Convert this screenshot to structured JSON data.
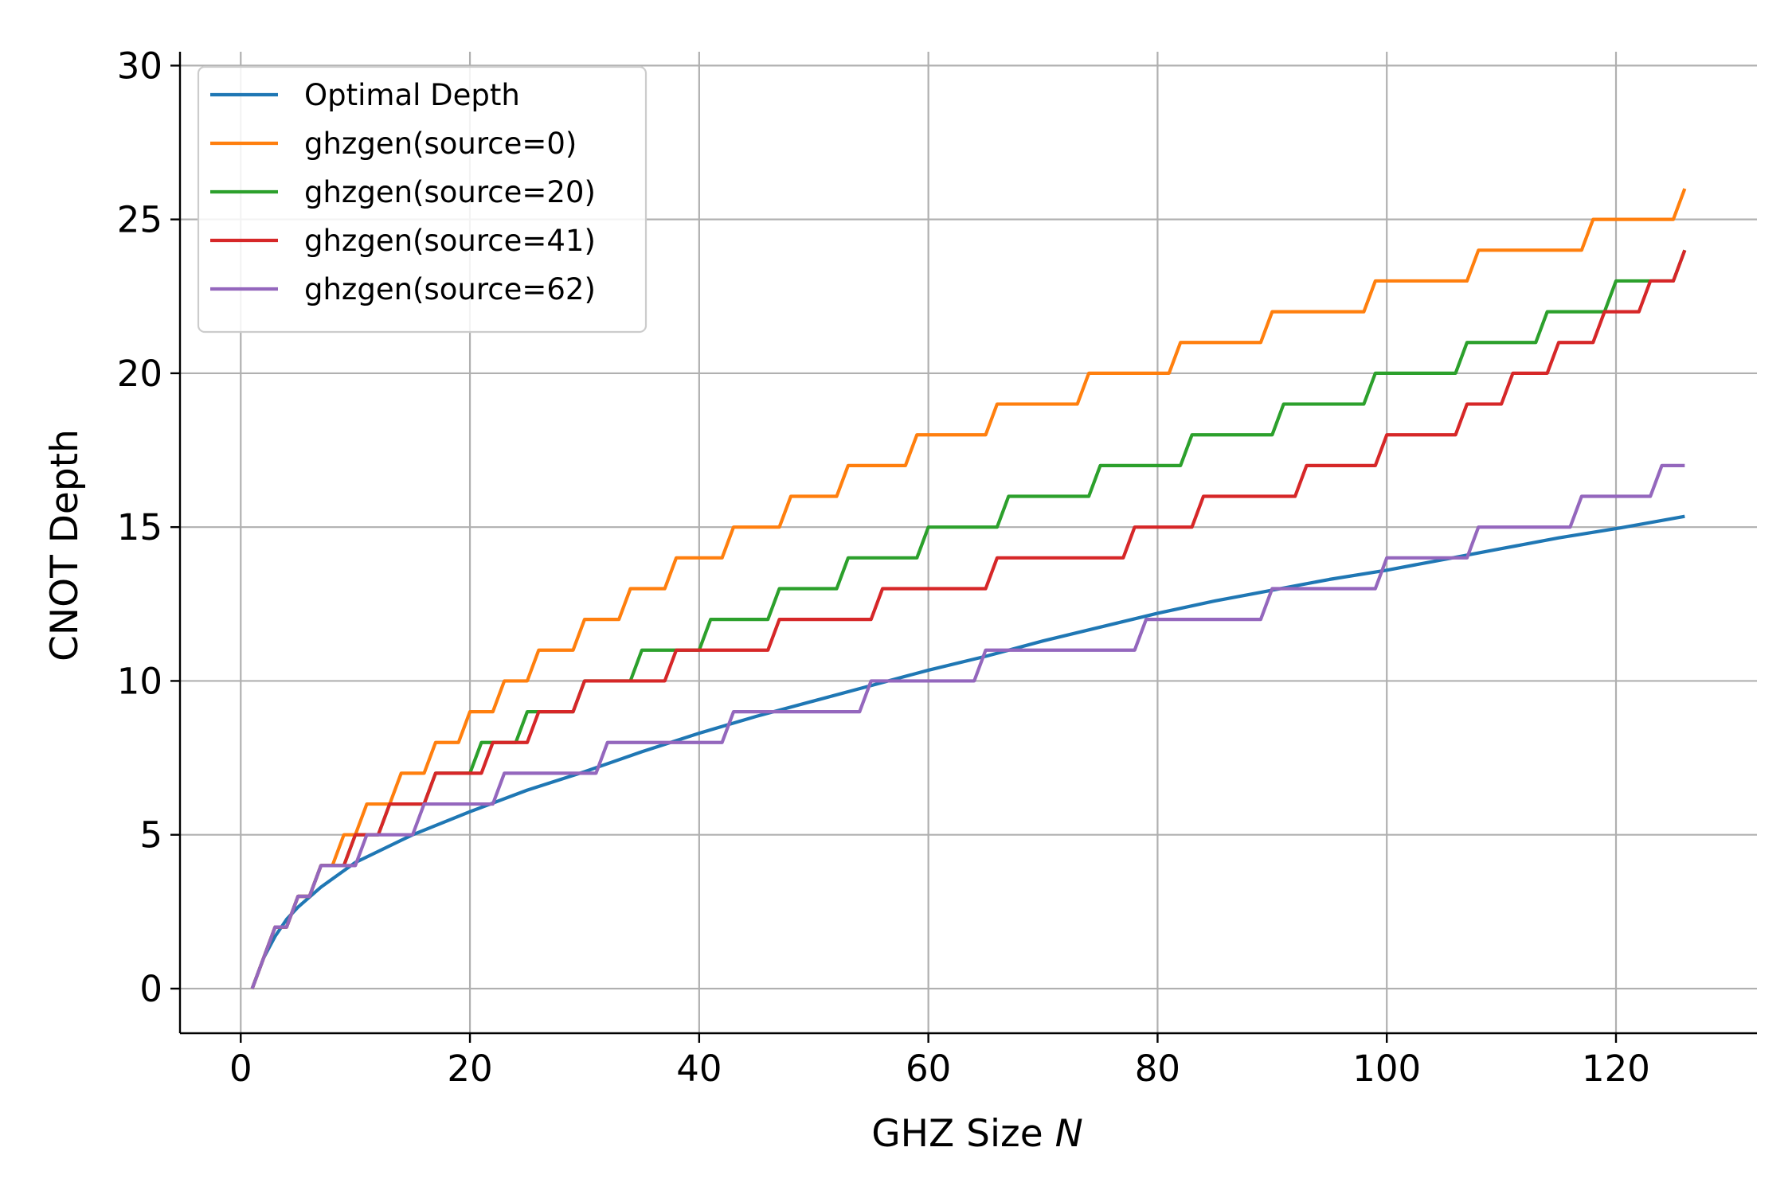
{
  "chart_data": {
    "type": "line",
    "xlabel": "GHZ Size",
    "xlabel_var": "N",
    "ylabel": "CNOT Depth",
    "xlim": [
      -5.3,
      132.3
    ],
    "ylim": [
      -1.45,
      30.45
    ],
    "xticks": [
      0,
      20,
      40,
      60,
      80,
      100,
      120
    ],
    "yticks": [
      0,
      5,
      10,
      15,
      20,
      25,
      30
    ],
    "grid": true,
    "legend_position": "top-left",
    "x_range": [
      1,
      126
    ],
    "series": [
      {
        "name": "Optimal Depth",
        "color": "#1f77b4",
        "kind": "curve",
        "formula_description": "smooth concave curve",
        "values": [
          [
            1,
            0
          ],
          [
            2,
            1
          ],
          [
            3,
            1.7
          ],
          [
            4,
            2.25
          ],
          [
            5,
            2.65
          ],
          [
            7,
            3.3
          ],
          [
            10,
            4.1
          ],
          [
            15,
            5.0
          ],
          [
            20,
            5.75
          ],
          [
            25,
            6.45
          ],
          [
            30,
            7.05
          ],
          [
            35,
            7.7
          ],
          [
            40,
            8.3
          ],
          [
            45,
            8.85
          ],
          [
            50,
            9.35
          ],
          [
            55,
            9.85
          ],
          [
            60,
            10.35
          ],
          [
            65,
            10.8
          ],
          [
            70,
            11.3
          ],
          [
            75,
            11.75
          ],
          [
            80,
            12.2
          ],
          [
            85,
            12.6
          ],
          [
            90,
            12.95
          ],
          [
            95,
            13.3
          ],
          [
            100,
            13.6
          ],
          [
            105,
            13.95
          ],
          [
            110,
            14.3
          ],
          [
            115,
            14.65
          ],
          [
            120,
            14.95
          ],
          [
            126,
            15.35
          ]
        ]
      },
      {
        "name": "ghzgen(source=0)",
        "color": "#ff7f0e",
        "kind": "step",
        "start": [
          1,
          0
        ],
        "steps": [
          2,
          3,
          5,
          7,
          9,
          11,
          14,
          17,
          20,
          23,
          26,
          30,
          34,
          38,
          43,
          48,
          53,
          59,
          66,
          74,
          82,
          90,
          99,
          108,
          118,
          126
        ],
        "end_x": 126
      },
      {
        "name": "ghzgen(source=20)",
        "color": "#2ca02c",
        "kind": "step",
        "start": [
          1,
          0
        ],
        "steps": [
          2,
          3,
          5,
          7,
          10,
          13,
          17,
          21,
          25,
          30,
          35,
          41,
          47,
          53,
          60,
          67,
          75,
          83,
          91,
          99,
          107,
          114,
          120,
          126
        ],
        "end_x": 126
      },
      {
        "name": "ghzgen(source=41)",
        "color": "#d62728",
        "kind": "step",
        "start": [
          1,
          0
        ],
        "steps": [
          2,
          3,
          5,
          7,
          10,
          13,
          17,
          22,
          26,
          30,
          38,
          47,
          56,
          66,
          78,
          84,
          93,
          100,
          107,
          111,
          115,
          119,
          123,
          126
        ],
        "end_x": 126
      },
      {
        "name": "ghzgen(source=62)",
        "color": "#9467bd",
        "kind": "step",
        "start": [
          1,
          0
        ],
        "steps": [
          2,
          3,
          5,
          7,
          11,
          16,
          23,
          32,
          43,
          55,
          65,
          79,
          90,
          100,
          108,
          117,
          124
        ],
        "end_x": 126
      }
    ]
  }
}
